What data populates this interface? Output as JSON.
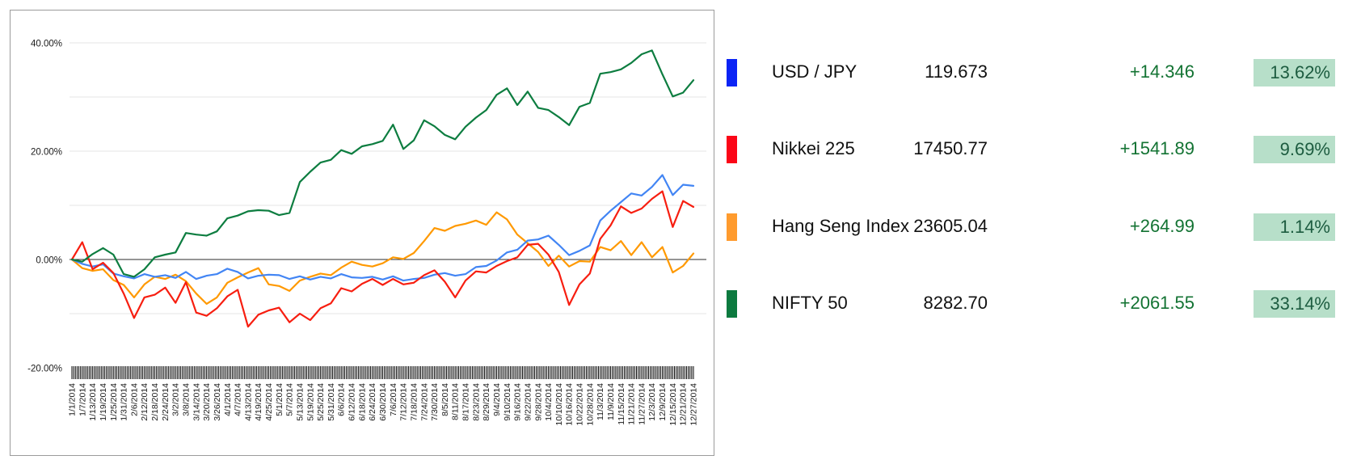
{
  "chart_data": {
    "type": "line",
    "x": [
      "1/1/2014",
      "1/7/2014",
      "1/13/2014",
      "1/19/2014",
      "1/25/2014",
      "1/31/2014",
      "2/6/2014",
      "2/12/2014",
      "2/18/2014",
      "2/24/2014",
      "3/2/2014",
      "3/8/2014",
      "3/14/2014",
      "3/20/2014",
      "3/26/2014",
      "4/1/2014",
      "4/7/2014",
      "4/13/2014",
      "4/19/2014",
      "4/25/2014",
      "5/1/2014",
      "5/7/2014",
      "5/13/2014",
      "5/19/2014",
      "5/25/2014",
      "5/31/2014",
      "6/6/2014",
      "6/12/2014",
      "6/18/2014",
      "6/24/2014",
      "6/30/2014",
      "7/6/2014",
      "7/12/2014",
      "7/18/2014",
      "7/24/2014",
      "7/30/2014",
      "8/5/2014",
      "8/11/2014",
      "8/17/2014",
      "8/23/2014",
      "8/29/2014",
      "9/4/2014",
      "9/10/2014",
      "9/16/2014",
      "9/22/2014",
      "9/28/2014",
      "10/4/2014",
      "10/10/2014",
      "10/16/2014",
      "10/22/2014",
      "10/28/2014",
      "11/3/2014",
      "11/9/2014",
      "11/15/2014",
      "11/21/2014",
      "11/27/2014",
      "12/3/2014",
      "12/9/2014",
      "12/15/2014",
      "12/21/2014",
      "12/27/2014"
    ],
    "x_label_every_days": 6,
    "x_minor_tick_every_days": 1,
    "ylim": [
      -20,
      40
    ],
    "ylabel": "",
    "xlabel": "",
    "grid": true,
    "legend_position": "right-table",
    "y_gridlines": [
      40,
      30,
      20,
      10,
      0,
      -10
    ],
    "y_axis_ticks": [
      {
        "value": 40,
        "label": "40.00%"
      },
      {
        "value": 20,
        "label": "20.00%"
      },
      {
        "value": 0,
        "label": "0.00%"
      },
      {
        "value": -20,
        "label": "-20.00%"
      }
    ],
    "unit": "percent-change",
    "draw_order": [
      2,
      0,
      1,
      3
    ],
    "series": [
      {
        "name": "USD / JPY",
        "color": "#4285f4",
        "values": [
          0,
          -0.8,
          -1.3,
          -0.9,
          -2.6,
          -3.1,
          -3.5,
          -2.7,
          -3.2,
          -2.9,
          -3.4,
          -2.3,
          -3.6,
          -3,
          -2.7,
          -1.7,
          -2.3,
          -3.5,
          -3,
          -2.8,
          -2.9,
          -3.6,
          -3.1,
          -3.7,
          -3.2,
          -3.5,
          -2.7,
          -3.3,
          -3.4,
          -3.2,
          -3.7,
          -3.1,
          -3.9,
          -3.6,
          -3.4,
          -2.8,
          -2.5,
          -3,
          -2.7,
          -1.4,
          -1.2,
          -0.2,
          1.3,
          1.8,
          3.5,
          3.7,
          4.4,
          2.7,
          0.8,
          1.6,
          2.6,
          7.2,
          9,
          10.6,
          12.2,
          11.8,
          13.4,
          15.6,
          11.9,
          13.8,
          13.6
        ]
      },
      {
        "name": "Nikkei 225",
        "color": "#f71e10",
        "values": [
          0,
          3.2,
          -1.8,
          -0.6,
          -2.5,
          -6.3,
          -10.8,
          -7,
          -6.5,
          -5.2,
          -8,
          -4.2,
          -9.8,
          -10.4,
          -9,
          -6.8,
          -5.6,
          -12.4,
          -10.2,
          -9.4,
          -8.9,
          -11.6,
          -10,
          -11.2,
          -9,
          -8.1,
          -5.3,
          -5.9,
          -4.5,
          -3.6,
          -4.7,
          -3.6,
          -4.6,
          -4.3,
          -2.9,
          -2,
          -4.1,
          -7,
          -3.9,
          -2.2,
          -2.4,
          -1.2,
          -0.3,
          0.4,
          2.7,
          2.9,
          0.9,
          -2.3,
          -8.4,
          -4.6,
          -2.6,
          3.8,
          6.3,
          9.8,
          8.6,
          9.4,
          11.2,
          12.6,
          6,
          10.8,
          9.7
        ]
      },
      {
        "name": "Hang Seng Index",
        "color": "#ff9900",
        "values": [
          0,
          -1.6,
          -2.1,
          -1.8,
          -3.8,
          -4.7,
          -7,
          -4.6,
          -3.2,
          -3.6,
          -2.8,
          -4,
          -6.3,
          -8.2,
          -7,
          -4.3,
          -3.3,
          -2.4,
          -1.6,
          -4.6,
          -4.9,
          -5.8,
          -3.9,
          -3.2,
          -2.6,
          -2.9,
          -1.5,
          -0.4,
          -1,
          -1.3,
          -0.7,
          0.4,
          0.1,
          1.2,
          3.4,
          5.8,
          5.3,
          6.2,
          6.6,
          7.2,
          6.4,
          8.7,
          7.4,
          4.6,
          3,
          1.4,
          -1.2,
          0.7,
          -1.3,
          -0.3,
          -0.4,
          2.3,
          1.7,
          3.4,
          0.8,
          3.2,
          0.4,
          2.3,
          -2.4,
          -1.2,
          1.1
        ]
      },
      {
        "name": "NIFTY 50",
        "color": "#0d7d40",
        "values": [
          0,
          -0.4,
          1,
          2.1,
          0.9,
          -2.7,
          -3.2,
          -1.8,
          0.4,
          0.9,
          1.3,
          4.9,
          4.6,
          4.4,
          5.2,
          7.6,
          8.1,
          8.9,
          9.1,
          9,
          8.2,
          8.6,
          14.3,
          16.2,
          17.9,
          18.4,
          20.2,
          19.5,
          20.9,
          21.3,
          21.9,
          24.9,
          20.4,
          22,
          25.7,
          24.6,
          23,
          22.2,
          24.5,
          26.2,
          27.6,
          30.4,
          31.6,
          28.5,
          31,
          28,
          27.6,
          26.3,
          24.8,
          28.2,
          28.9,
          34.3,
          34.6,
          35.1,
          36.3,
          37.9,
          38.6,
          34.2,
          30.1,
          30.8,
          33.1
        ]
      }
    ]
  },
  "quotes": {
    "rows": [
      {
        "name": "USD / JPY",
        "swatch": "#0b24f5",
        "last": "119.673",
        "change": "+14.346",
        "pct": "13.62%"
      },
      {
        "name": "Nikkei 225",
        "swatch": "#fb0617",
        "last": "17450.77",
        "change": "+1541.89",
        "pct": "9.69%"
      },
      {
        "name": "Hang Seng Index",
        "swatch": "#ff9b2e",
        "last": "23605.04",
        "change": "+264.99",
        "pct": "1.14%"
      },
      {
        "name": "NIFTY 50",
        "swatch": "#0c7a3f",
        "last": "8282.70",
        "change": "+2061.55",
        "pct": "33.14%"
      }
    ]
  },
  "colors": {
    "change_text": "#137333",
    "badge_bg": "#b7dfc9",
    "badge_text": "#1d5c40",
    "gridline": "#e4e4e4",
    "zero_line": "#2b2b2b",
    "tick": "#000000"
  }
}
